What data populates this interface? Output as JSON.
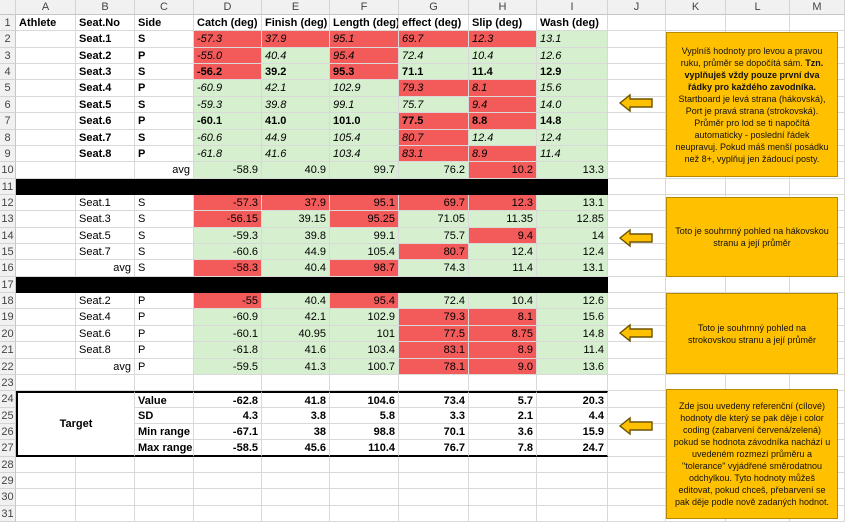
{
  "columns": [
    "A",
    "B",
    "C",
    "D",
    "E",
    "F",
    "G",
    "H",
    "I",
    "J",
    "K",
    "L",
    "M"
  ],
  "rows": [
    "2",
    "3",
    "4",
    "5",
    "6",
    "7",
    "8",
    "9",
    "10",
    "11",
    "12",
    "13",
    "14",
    "15",
    "16",
    "17",
    "18",
    "19",
    "20",
    "21",
    "22",
    "23",
    "24",
    "25",
    "26",
    "27",
    "28",
    "29",
    "30",
    "31"
  ],
  "header_row": {
    "athlete": "Athlete",
    "seat": "Seat.No",
    "side": "Side",
    "catch": "Catch (deg)",
    "finish": "Finish (deg)",
    "length": "Length (deg)",
    "effect": "effect (deg)",
    "slip": "Slip (deg)",
    "wash": "Wash (deg)"
  },
  "block1": [
    {
      "seat": "Seat.1",
      "side": "S",
      "v": [
        "-57.3",
        "37.9",
        "95.1",
        "69.7",
        "12.3",
        "13.1"
      ],
      "c": [
        "red",
        "red",
        "red",
        "red",
        "red",
        "grn"
      ],
      "style": "i"
    },
    {
      "seat": "Seat.2",
      "side": "P",
      "v": [
        "-55.0",
        "40.4",
        "95.4",
        "72.4",
        "10.4",
        "12.6"
      ],
      "c": [
        "red",
        "grn",
        "red",
        "grn",
        "grn",
        "grn"
      ],
      "style": "i"
    },
    {
      "seat": "Seat.3",
      "side": "S",
      "v": [
        "-56.2",
        "39.2",
        "95.3",
        "71.1",
        "11.4",
        "12.9"
      ],
      "c": [
        "red",
        "grn",
        "red",
        "grn",
        "grn",
        "grn"
      ],
      "style": "b"
    },
    {
      "seat": "Seat.4",
      "side": "P",
      "v": [
        "-60.9",
        "42.1",
        "102.9",
        "79.3",
        "8.1",
        "15.6"
      ],
      "c": [
        "grn",
        "grn",
        "grn",
        "red",
        "red",
        "grn"
      ],
      "style": "i"
    },
    {
      "seat": "Seat.5",
      "side": "S",
      "v": [
        "-59.3",
        "39.8",
        "99.1",
        "75.7",
        "9.4",
        "14.0"
      ],
      "c": [
        "grn",
        "grn",
        "grn",
        "grn",
        "red",
        "grn"
      ],
      "style": "i"
    },
    {
      "seat": "Seat.6",
      "side": "P",
      "v": [
        "-60.1",
        "41.0",
        "101.0",
        "77.5",
        "8.8",
        "14.8"
      ],
      "c": [
        "grn",
        "grn",
        "grn",
        "red",
        "red",
        "grn"
      ],
      "style": "b"
    },
    {
      "seat": "Seat.7",
      "side": "S",
      "v": [
        "-60.6",
        "44.9",
        "105.4",
        "80.7",
        "12.4",
        "12.4"
      ],
      "c": [
        "grn",
        "grn",
        "grn",
        "red",
        "grn",
        "grn"
      ],
      "style": "i"
    },
    {
      "seat": "Seat.8",
      "side": "P",
      "v": [
        "-61.8",
        "41.6",
        "103.4",
        "83.1",
        "8.9",
        "11.4"
      ],
      "c": [
        "grn",
        "grn",
        "grn",
        "red",
        "red",
        "grn"
      ],
      "style": "i"
    }
  ],
  "avg1": {
    "label": "avg",
    "v": [
      "-58.9",
      "40.9",
      "99.7",
      "76.2",
      "10.2",
      "13.3"
    ],
    "c": [
      "grn",
      "grn",
      "grn",
      "grn",
      "red",
      "grn"
    ]
  },
  "block2": [
    {
      "seat": "Seat.1",
      "side": "S",
      "v": [
        "-57.3",
        "37.9",
        "95.1",
        "69.7",
        "12.3",
        "13.1"
      ],
      "c": [
        "red",
        "red",
        "red",
        "red",
        "red",
        "grn"
      ]
    },
    {
      "seat": "Seat.3",
      "side": "S",
      "v": [
        "-56.15",
        "39.15",
        "95.25",
        "71.05",
        "11.35",
        "12.85"
      ],
      "c": [
        "red",
        "grn",
        "red",
        "grn",
        "grn",
        "grn"
      ]
    },
    {
      "seat": "Seat.5",
      "side": "S",
      "v": [
        "-59.3",
        "39.8",
        "99.1",
        "75.7",
        "9.4",
        "14"
      ],
      "c": [
        "grn",
        "grn",
        "grn",
        "grn",
        "red",
        "grn"
      ]
    },
    {
      "seat": "Seat.7",
      "side": "S",
      "v": [
        "-60.6",
        "44.9",
        "105.4",
        "80.7",
        "12.4",
        "12.4"
      ],
      "c": [
        "grn",
        "grn",
        "grn",
        "red",
        "grn",
        "grn"
      ]
    }
  ],
  "avg2": {
    "label": "avg",
    "side": "S",
    "v": [
      "-58.3",
      "40.4",
      "98.7",
      "74.3",
      "11.4",
      "13.1"
    ],
    "c": [
      "red",
      "grn",
      "red",
      "grn",
      "grn",
      "grn"
    ]
  },
  "block3": [
    {
      "seat": "Seat.2",
      "side": "P",
      "v": [
        "-55",
        "40.4",
        "95.4",
        "72.4",
        "10.4",
        "12.6"
      ],
      "c": [
        "red",
        "grn",
        "red",
        "grn",
        "grn",
        "grn"
      ]
    },
    {
      "seat": "Seat.4",
      "side": "P",
      "v": [
        "-60.9",
        "42.1",
        "102.9",
        "79.3",
        "8.1",
        "15.6"
      ],
      "c": [
        "grn",
        "grn",
        "grn",
        "red",
        "red",
        "grn"
      ]
    },
    {
      "seat": "Seat.6",
      "side": "P",
      "v": [
        "-60.1",
        "40.95",
        "101",
        "77.5",
        "8.75",
        "14.8"
      ],
      "c": [
        "grn",
        "grn",
        "grn",
        "red",
        "red",
        "grn"
      ]
    },
    {
      "seat": "Seat.8",
      "side": "P",
      "v": [
        "-61.8",
        "41.6",
        "103.4",
        "83.1",
        "8.9",
        "11.4"
      ],
      "c": [
        "grn",
        "grn",
        "grn",
        "red",
        "red",
        "grn"
      ]
    }
  ],
  "avg3": {
    "label": "avg",
    "side": "P",
    "v": [
      "-59.5",
      "41.3",
      "100.7",
      "78.1",
      "9.0",
      "13.6"
    ],
    "c": [
      "grn",
      "grn",
      "grn",
      "red",
      "red",
      "grn"
    ]
  },
  "target": {
    "label": "Target",
    "rows": [
      {
        "name": "Value",
        "v": [
          "-62.8",
          "41.8",
          "104.6",
          "73.4",
          "5.7",
          "20.3"
        ]
      },
      {
        "name": "SD",
        "v": [
          "4.3",
          "3.8",
          "5.8",
          "3.3",
          "2.1",
          "4.4"
        ]
      },
      {
        "name": "Min range",
        "v": [
          "-67.1",
          "38",
          "98.8",
          "70.1",
          "3.6",
          "15.9"
        ]
      },
      {
        "name": "Max range",
        "v": [
          "-58.5",
          "45.6",
          "110.4",
          "76.7",
          "7.8",
          "24.7"
        ]
      }
    ]
  },
  "notes": {
    "note1_pre": "Vyplníš hodnoty pro levou a pravou ruku, průměr se dopočítá sám.",
    "note1_bold": "Tzn. vyplňuješ vždy pouze první dva řádky pro každého zavodníka.",
    "note1_post": "Startboard je levá strana (hákovská), Port je pravá strana (strokovská). Průměr pro lod se ti napočítá automaticky - poslední řádek neupravuj. Pokud máš menší posádku než 8+, vyplňuj jen žádoucí posty.",
    "note2": "Toto je souhrnný pohled na hákovskou stranu a její průměr",
    "note3": "Toto je souhrnný pohled na strokovskou stranu a její průměr",
    "note4": "Zde jsou uvedeny referenční (cílové) hodnoty dle který se pak děje i color coding (zabarvení červená/zelená) pokud se hodnota závodníka nachází u uvedeném rozmezí průměru a \"tolerance\" vyjádřené směrodatnou odchylkou. Tyto hodnoty můžeš editovat, pokud chceš, přebarvení se pak děje podle nově zadaných hodnot."
  },
  "colors": {
    "red": "#f35b5b",
    "green": "#d6efcf",
    "note": "#ffc000"
  }
}
